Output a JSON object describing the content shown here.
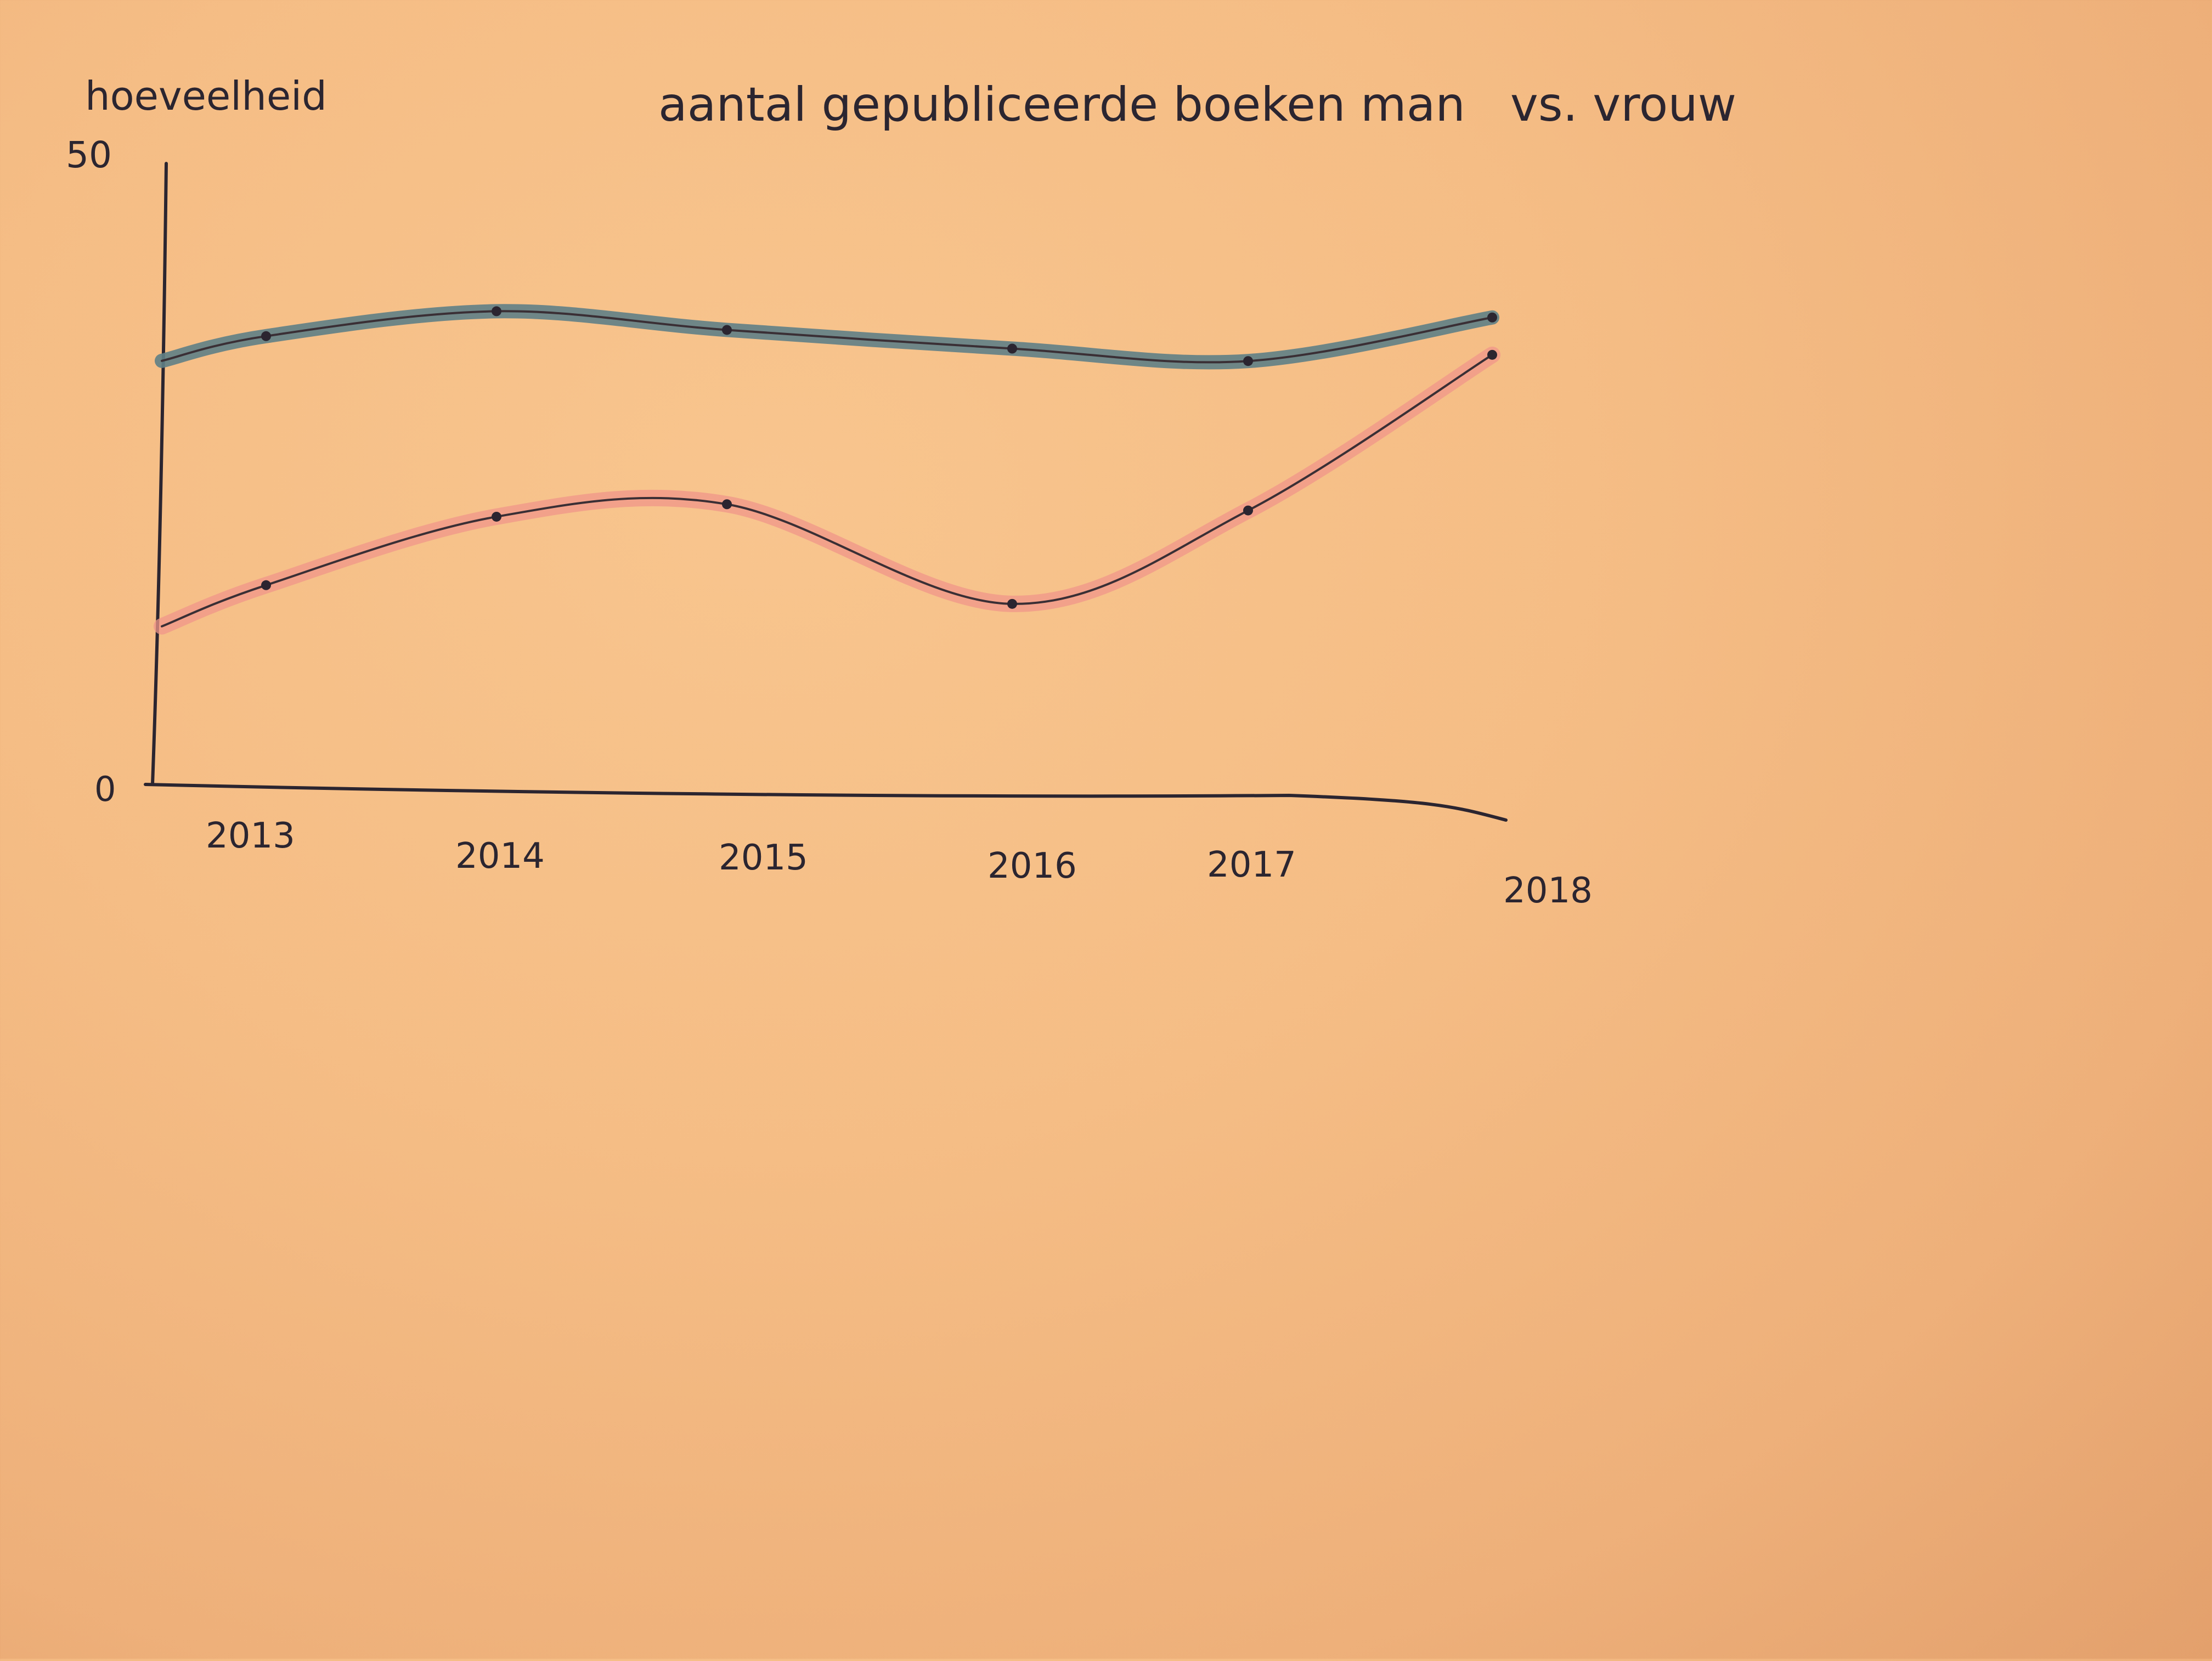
{
  "chart_data": {
    "type": "line",
    "title": "aantal gepubliceerde boeken man   vs. vrouw",
    "ylabel": "hoeveelheid",
    "xlabel": "",
    "categories": [
      "2013",
      "2014",
      "2015",
      "2016",
      "2017",
      "2018"
    ],
    "ylim": [
      0,
      50
    ],
    "yticks": [
      "0",
      "50"
    ],
    "grid": false,
    "series": [
      {
        "color": "#5f7f86",
        "values": [
          36,
          38,
          36.5,
          35,
          34,
          37.5
        ]
      },
      {
        "color": "#f0968a",
        "values": [
          16,
          21.5,
          22.5,
          14.5,
          22,
          34.5
        ]
      }
    ]
  }
}
